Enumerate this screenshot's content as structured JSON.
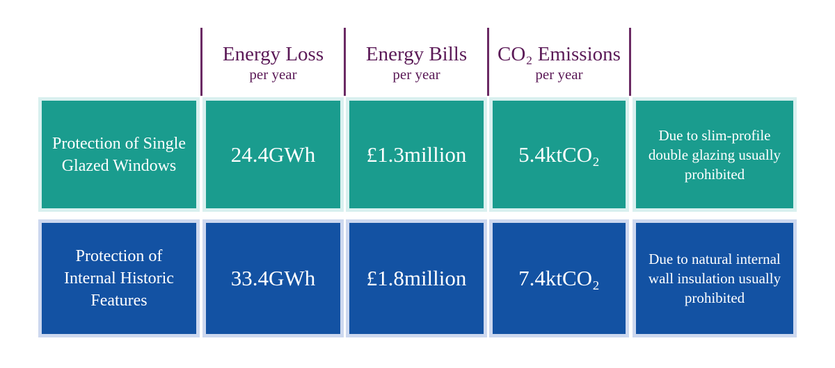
{
  "table": {
    "columns": [
      {
        "title": "Energy Loss",
        "subtitle": "per year"
      },
      {
        "title": "Energy Bills",
        "subtitle": "per year"
      },
      {
        "title": "CO₂ Emissions",
        "subtitle": "per year"
      }
    ],
    "rows": [
      {
        "label": "Protection of Single Glazed Windows",
        "values": [
          "24.4GWh",
          "£1.3million",
          "5.4ktCO₂"
        ],
        "note": "Due to slim-profile double glazing usually prohibited"
      },
      {
        "label": "Protection of Internal Historic Features",
        "values": [
          "33.4GWh",
          "£1.8million",
          "7.4ktCO₂"
        ],
        "note": "Due to natural internal wall insulation usually prohibited"
      }
    ]
  }
}
